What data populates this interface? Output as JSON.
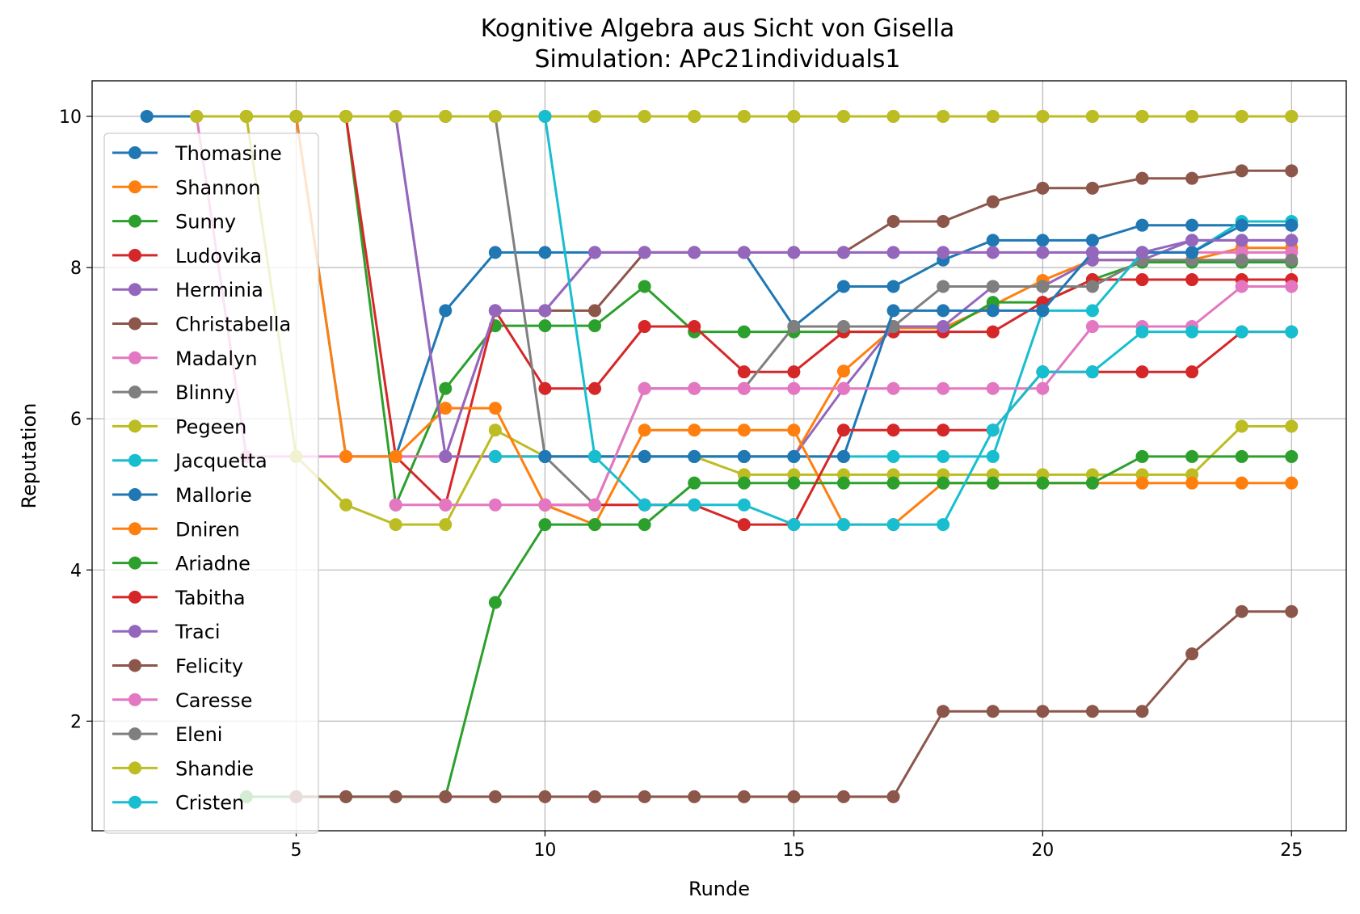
{
  "chart_data": {
    "type": "line",
    "title": "Kognitive Algebra aus Sicht von Gisella",
    "subtitle": "Simulation: APc21individuals1",
    "xlabel": "Runde",
    "ylabel": "Reputation",
    "xlim": [
      0.9,
      26.1
    ],
    "ylim": [
      0.55,
      10.47
    ],
    "xticks": [
      5,
      10,
      15,
      20,
      25
    ],
    "yticks": [
      2,
      4,
      6,
      8,
      10
    ],
    "grid": true,
    "legend_position": "upper-left",
    "series": [
      {
        "name": "Thomasine",
        "color": "#1f77b4",
        "x": [
          2,
          3,
          4,
          5,
          6,
          7,
          8,
          9,
          10,
          11,
          12,
          13,
          14,
          15,
          16,
          17,
          18,
          19,
          20,
          21,
          22,
          23,
          24,
          25
        ],
        "values": [
          10,
          10,
          10,
          10,
          5.5,
          5.5,
          7.43,
          8.2,
          8.2,
          8.2,
          8.2,
          8.2,
          8.2,
          7.22,
          7.75,
          7.75,
          8.1,
          8.36,
          8.36,
          8.36,
          8.56,
          8.56,
          8.56,
          8.56
        ]
      },
      {
        "name": "Shannon",
        "color": "#ff7f0e",
        "x": [
          3,
          4,
          5,
          6,
          7,
          8,
          9,
          10,
          11,
          12,
          13,
          14,
          15,
          16,
          17,
          18,
          19,
          20,
          21,
          22,
          23,
          24,
          25
        ],
        "values": [
          10,
          10,
          10,
          5.5,
          5.5,
          5.5,
          5.5,
          5.5,
          5.5,
          5.5,
          5.5,
          5.5,
          5.5,
          6.63,
          7.2,
          7.2,
          7.5,
          7.83,
          8.1,
          8.1,
          8.1,
          8.26,
          8.26
        ]
      },
      {
        "name": "Sunny",
        "color": "#2ca02c",
        "x": [
          4,
          5,
          6,
          7,
          8,
          9,
          10,
          11,
          12,
          13,
          14,
          15,
          16,
          17,
          18,
          19,
          20,
          21,
          22,
          23,
          24,
          25
        ],
        "values": [
          10,
          10,
          10,
          4.86,
          6.4,
          7.23,
          7.23,
          7.23,
          7.75,
          7.15,
          7.15,
          7.15,
          7.15,
          7.15,
          7.15,
          7.54,
          7.54,
          7.84,
          8.07,
          8.07,
          8.07,
          8.07
        ]
      },
      {
        "name": "Ludovika",
        "color": "#d62728",
        "x": [
          5,
          6,
          7,
          8,
          9,
          10,
          11,
          12,
          13,
          14,
          15,
          16,
          17,
          18,
          19,
          20,
          21,
          22,
          23,
          24,
          25
        ],
        "values": [
          10,
          10,
          5.5,
          4.86,
          7.43,
          6.4,
          6.4,
          7.22,
          7.22,
          6.62,
          6.62,
          7.15,
          7.15,
          7.15,
          7.15,
          7.54,
          7.84,
          7.84,
          7.84,
          7.84,
          7.84
        ]
      },
      {
        "name": "Herminia",
        "color": "#9467bd",
        "x": [
          4,
          5,
          6,
          7,
          8,
          9,
          10,
          11,
          12,
          13,
          14,
          15,
          16,
          17,
          18,
          19,
          20,
          21,
          22,
          23,
          24,
          25
        ],
        "values": [
          10,
          10,
          10,
          10,
          5.5,
          5.5,
          5.5,
          5.5,
          5.5,
          5.5,
          5.5,
          5.5,
          6.4,
          7.22,
          7.22,
          7.75,
          7.75,
          8.1,
          8.1,
          8.36,
          8.36,
          8.36
        ]
      },
      {
        "name": "Christabella",
        "color": "#8c564b",
        "x": [
          9,
          10,
          11,
          12,
          13,
          14,
          15,
          16,
          17,
          18,
          19,
          20,
          21,
          22,
          23,
          24,
          25
        ],
        "values": [
          7.43,
          7.43,
          7.43,
          8.2,
          8.2,
          8.2,
          8.2,
          8.2,
          8.61,
          8.61,
          8.87,
          9.05,
          9.05,
          9.18,
          9.18,
          9.28,
          9.28
        ]
      },
      {
        "name": "Madalyn",
        "color": "#e377c2",
        "x": [
          3,
          4,
          5,
          6,
          7,
          8,
          9,
          10,
          11,
          12,
          13,
          14,
          15,
          16,
          17,
          18,
          19,
          20,
          21,
          22,
          23,
          24,
          25
        ],
        "values": [
          10,
          5.5,
          5.5,
          5.5,
          5.5,
          5.5,
          7.43,
          7.43,
          8.2,
          8.2,
          8.2,
          8.2,
          8.2,
          8.2,
          8.2,
          8.2,
          8.2,
          8.2,
          8.2,
          8.2,
          8.2,
          8.2,
          8.2
        ]
      },
      {
        "name": "Blinny",
        "color": "#7f7f7f",
        "x": [
          8,
          9,
          10,
          11,
          12,
          13,
          14,
          15,
          16,
          17,
          18,
          19,
          20,
          21,
          22,
          23,
          24,
          25
        ],
        "values": [
          10,
          10,
          5.5,
          4.86,
          6.4,
          6.4,
          6.4,
          7.22,
          7.22,
          7.22,
          7.75,
          7.75,
          7.75,
          7.75,
          8.1,
          8.1,
          8.1,
          8.1
        ]
      },
      {
        "name": "Pegeen",
        "color": "#bcbd22",
        "x": [
          3,
          4,
          5,
          6,
          7,
          8,
          9,
          10,
          11,
          12,
          13,
          14,
          15,
          16,
          17,
          18,
          19,
          20,
          21,
          22,
          23,
          24,
          25
        ],
        "values": [
          10,
          10,
          5.5,
          4.86,
          4.6,
          4.6,
          5.85,
          5.5,
          5.5,
          5.5,
          5.5,
          5.26,
          5.26,
          5.26,
          5.26,
          5.26,
          5.26,
          5.26,
          5.26,
          5.26,
          5.26,
          5.9,
          5.9
        ]
      },
      {
        "name": "Jacquetta",
        "color": "#17becf",
        "x": [
          9,
          10,
          11,
          12,
          13,
          14,
          15,
          16,
          17,
          18,
          19,
          20,
          21,
          22,
          23,
          24,
          25
        ],
        "values": [
          5.5,
          5.5,
          5.5,
          5.5,
          5.5,
          5.5,
          5.5,
          5.5,
          5.5,
          5.5,
          5.5,
          7.43,
          7.43,
          8.2,
          8.2,
          8.61,
          8.61
        ]
      },
      {
        "name": "Mallorie",
        "color": "#1f77b4",
        "x": [
          10,
          11,
          12,
          13,
          14,
          15,
          16,
          17,
          18,
          19,
          20,
          21,
          22,
          23,
          24,
          25
        ],
        "values": [
          5.5,
          5.5,
          5.5,
          5.5,
          5.5,
          5.5,
          5.5,
          7.43,
          7.43,
          7.43,
          7.43,
          8.2,
          8.2,
          8.2,
          8.56,
          8.56
        ]
      },
      {
        "name": "Dniren",
        "color": "#ff7f0e",
        "x": [
          6,
          7,
          8,
          9,
          10,
          11,
          12,
          13,
          14,
          15,
          16,
          17,
          18,
          19,
          20,
          21,
          22,
          23,
          24,
          25
        ],
        "values": [
          5.5,
          5.5,
          6.14,
          6.14,
          4.86,
          4.6,
          5.85,
          5.85,
          5.85,
          5.85,
          4.6,
          4.6,
          5.15,
          5.15,
          5.15,
          5.15,
          5.15,
          5.15,
          5.15,
          5.15
        ]
      },
      {
        "name": "Ariadne",
        "color": "#2ca02c",
        "x": [
          4,
          5,
          6,
          7,
          8,
          9,
          10,
          11,
          12,
          13,
          14,
          15,
          16,
          17,
          18,
          19,
          20,
          21,
          22,
          23,
          24,
          25
        ],
        "values": [
          1,
          1,
          1,
          1,
          1,
          3.57,
          4.6,
          4.6,
          4.6,
          5.15,
          5.15,
          5.15,
          5.15,
          5.15,
          5.15,
          5.15,
          5.15,
          5.15,
          5.5,
          5.5,
          5.5,
          5.5
        ]
      },
      {
        "name": "Tabitha",
        "color": "#d62728",
        "x": [
          10,
          11,
          12,
          13,
          14,
          15,
          16,
          17,
          18,
          19,
          20,
          21,
          22,
          23,
          24,
          25
        ],
        "values": [
          4.86,
          4.86,
          4.86,
          4.86,
          4.6,
          4.6,
          5.85,
          5.85,
          5.85,
          5.85,
          6.62,
          6.62,
          6.62,
          6.62,
          7.15,
          7.15
        ]
      },
      {
        "name": "Traci",
        "color": "#9467bd",
        "x": [
          7,
          8,
          9,
          10,
          11,
          12,
          13,
          14,
          15,
          16,
          17,
          18,
          19,
          20,
          21,
          22,
          23,
          24,
          25
        ],
        "values": [
          10,
          5.5,
          7.43,
          7.43,
          8.2,
          8.2,
          8.2,
          8.2,
          8.2,
          8.2,
          8.2,
          8.2,
          8.2,
          8.2,
          8.2,
          8.2,
          8.36,
          8.36,
          8.36
        ]
      },
      {
        "name": "Felicity",
        "color": "#8c564b",
        "x": [
          5,
          6,
          7,
          8,
          9,
          10,
          11,
          12,
          13,
          14,
          15,
          16,
          17,
          18,
          19,
          20,
          21,
          22,
          23,
          24,
          25
        ],
        "values": [
          1,
          1,
          1,
          1,
          1,
          1,
          1,
          1,
          1,
          1,
          1,
          1,
          1,
          2.13,
          2.13,
          2.13,
          2.13,
          2.13,
          2.89,
          3.45,
          3.45
        ]
      },
      {
        "name": "Caresse",
        "color": "#e377c2",
        "x": [
          7,
          8,
          9,
          10,
          11,
          12,
          13,
          14,
          15,
          16,
          17,
          18,
          19,
          20,
          21,
          22,
          23,
          24,
          25
        ],
        "values": [
          4.86,
          4.86,
          4.86,
          4.86,
          4.86,
          6.4,
          6.4,
          6.4,
          6.4,
          6.4,
          6.4,
          6.4,
          6.4,
          6.4,
          7.22,
          7.22,
          7.22,
          7.75,
          7.75
        ]
      },
      {
        "name": "Eleni",
        "color": "#7f7f7f",
        "x": [
          8,
          9,
          10,
          11,
          12,
          13,
          14,
          15,
          16,
          17,
          18,
          19,
          20,
          21,
          22,
          23,
          24,
          25
        ],
        "values": [
          10,
          10,
          10,
          10,
          10,
          10,
          10,
          10,
          10,
          10,
          10,
          10,
          10,
          10,
          10,
          10,
          10,
          10
        ]
      },
      {
        "name": "Shandie",
        "color": "#bcbd22",
        "x": [
          3,
          4,
          5,
          6,
          7,
          8,
          9,
          10,
          11,
          12,
          13,
          14,
          15,
          16,
          17,
          18,
          19,
          20,
          21,
          22,
          23,
          24,
          25
        ],
        "values": [
          10,
          10,
          10,
          10,
          10,
          10,
          10,
          10,
          10,
          10,
          10,
          10,
          10,
          10,
          10,
          10,
          10,
          10,
          10,
          10,
          10,
          10,
          10
        ]
      },
      {
        "name": "Cristen",
        "color": "#17becf",
        "x": [
          10,
          11,
          12,
          13,
          14,
          15,
          16,
          17,
          18,
          19,
          20,
          21,
          22,
          23,
          24,
          25
        ],
        "values": [
          10,
          5.5,
          4.86,
          4.86,
          4.86,
          4.6,
          4.6,
          4.6,
          4.6,
          5.85,
          6.62,
          6.62,
          7.15,
          7.15,
          7.15,
          7.15
        ]
      }
    ]
  }
}
